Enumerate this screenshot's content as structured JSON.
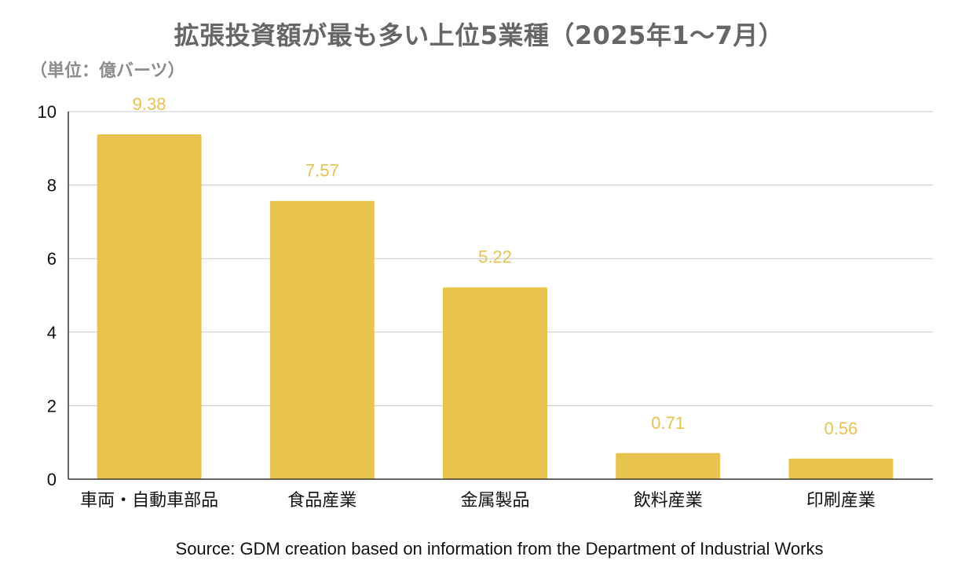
{
  "chart_data": {
    "type": "bar",
    "title": "拡張投資額が最も多い上位5業種（2025年1〜7月）",
    "subtitle": "（単位：億バーツ）",
    "categories": [
      "車両・自動車部品",
      "食品産業",
      "金属製品",
      "飲料産業",
      "印刷産業"
    ],
    "values": [
      9.38,
      7.57,
      5.22,
      0.71,
      0.56
    ],
    "data_labels": [
      "9.38",
      "7.57",
      "5.22",
      "0.71",
      "0.56"
    ],
    "y_ticks": [
      0,
      2,
      4,
      6,
      8,
      10
    ],
    "ylim": [
      0,
      10
    ],
    "grid": true,
    "legend": "none",
    "bar_color": "#e8c44f",
    "label_color": "#e8c24e",
    "source": "Source: GDM creation based on information from the Department of Industrial Works"
  }
}
